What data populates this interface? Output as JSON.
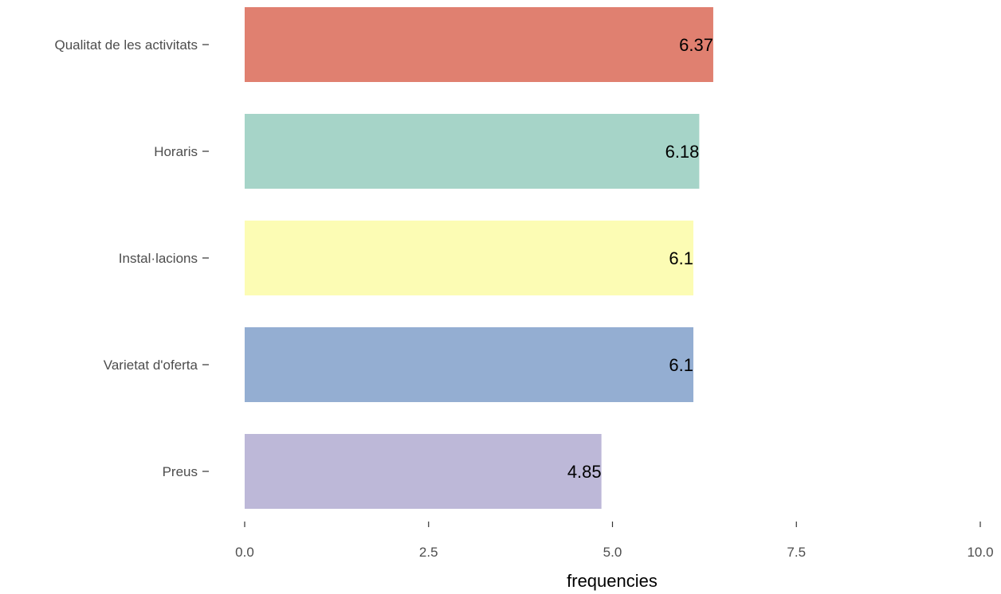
{
  "chart_data": {
    "type": "bar",
    "orientation": "horizontal",
    "categories": [
      "Qualitat de les activitats",
      "Horaris",
      "Instal·lacions",
      "Varietat d'oferta",
      "Preus"
    ],
    "values": [
      6.37,
      6.18,
      6.1,
      6.1,
      4.85
    ],
    "value_labels": [
      "6.37",
      "6.18",
      "6.1",
      "6.1",
      "4.85"
    ],
    "colors": [
      "#e08070",
      "#a6d4c8",
      "#fcfcb4",
      "#94aed2",
      "#bdb8d8"
    ],
    "xlabel": "frequencies",
    "ylabel": "",
    "title": "",
    "xlim": [
      0,
      10
    ],
    "x_ticks": [
      "0.0",
      "2.5",
      "5.0",
      "7.5",
      "10.0"
    ],
    "x_tick_values": [
      0,
      2.5,
      5,
      7.5,
      10
    ],
    "grid": false,
    "legend": "none"
  }
}
